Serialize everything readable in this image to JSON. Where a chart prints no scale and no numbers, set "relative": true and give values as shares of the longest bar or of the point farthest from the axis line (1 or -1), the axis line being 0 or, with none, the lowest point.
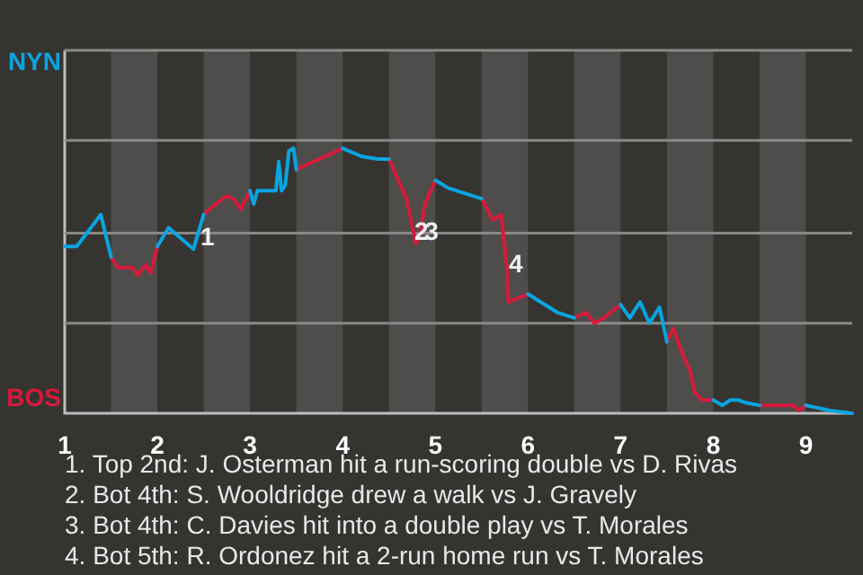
{
  "chart_data": {
    "type": "line",
    "relative": true,
    "xlim": [
      1,
      9.5
    ],
    "xticks": [
      1,
      2,
      3,
      4,
      5,
      6,
      7,
      8,
      9
    ],
    "legend": false,
    "marker": "none",
    "line_style": "solid",
    "series": [
      {
        "color": "#0aa4e0",
        "x": [
          1,
          1.13,
          1.39,
          1.5,
          1.75,
          2,
          2.12,
          2.39,
          2.5,
          2.75,
          3,
          3.04,
          3.08,
          3.28,
          3.31,
          3.34,
          3.38,
          3.42,
          3.47,
          3.5,
          3.75,
          4,
          4.2,
          4.38,
          4.5,
          4.75,
          5,
          5.14,
          5.5,
          5.75,
          6,
          6.32,
          6.5,
          6.75,
          7,
          7.1,
          7.21,
          7.31,
          7.42,
          7.5,
          7.75,
          8,
          8.1,
          8.18,
          8.27,
          8.35,
          8.5,
          8.75,
          9,
          9.26,
          9.5
        ],
        "values": [
          0.63,
          0.63,
          0.75,
          0.59,
          null,
          0.63,
          0.7,
          0.62,
          0.75,
          null,
          0.84,
          0.79,
          0.84,
          0.84,
          0.95,
          0.84,
          0.86,
          0.99,
          1,
          0.92,
          null,
          1,
          0.97,
          0.96,
          0.96,
          null,
          0.88,
          0.85,
          0.81,
          null,
          0.45,
          0.38,
          0.36,
          null,
          0.41,
          0.36,
          0.42,
          0.34,
          0.4,
          0.27,
          null,
          0.05,
          0.03,
          0.05,
          0.05,
          0.04,
          0.03,
          null,
          0.03,
          0.01,
          0
        ]
      },
      {
        "color": "#d61a3c",
        "x": [
          1.5,
          1.57,
          1.73,
          1.79,
          1.87,
          1.93,
          2,
          2.25,
          2.5,
          2.6,
          2.74,
          2.82,
          2.9,
          3,
          3.25,
          3.5,
          4,
          4.25,
          4.5,
          4.69,
          4.79,
          4.83,
          4.89,
          5,
          5.25,
          5.5,
          5.62,
          5.71,
          5.77,
          5.79,
          6,
          6.25,
          6.5,
          6.63,
          6.72,
          6.82,
          7,
          7.25,
          7.5,
          7.57,
          7.66,
          7.75,
          7.8,
          7.88,
          8,
          8.25,
          8.5,
          8.86,
          8.93,
          9
        ],
        "values": [
          0.59,
          0.55,
          0.55,
          0.52,
          0.56,
          0.53,
          0.63,
          null,
          0.75,
          0.78,
          0.82,
          0.81,
          0.77,
          0.84,
          null,
          0.92,
          1,
          null,
          0.96,
          0.81,
          0.64,
          0.67,
          0.79,
          0.88,
          null,
          0.81,
          0.73,
          0.75,
          0.56,
          0.42,
          0.45,
          null,
          0.36,
          0.38,
          0.34,
          0.36,
          0.41,
          null,
          0.27,
          0.32,
          0.23,
          0.16,
          0.08,
          0.05,
          0.05,
          null,
          0.03,
          0.03,
          0.01,
          0.03
        ]
      }
    ],
    "ref_lines": [
      {
        "axis": "y",
        "value": 0.34,
        "color": "#8a8886"
      },
      {
        "axis": "y",
        "value": 0.68,
        "color": "#8a8886"
      },
      {
        "axis": "y",
        "value": 1.03,
        "color": "#8a8886"
      },
      {
        "axis": "y",
        "value": 1.37,
        "color": "#8a8886"
      }
    ],
    "bands": [
      {
        "axis": "x",
        "from": 1.5,
        "to": 2,
        "color": "#4f4d4b"
      },
      {
        "axis": "x",
        "from": 2.5,
        "to": 3,
        "color": "#4f4d4b"
      },
      {
        "axis": "x",
        "from": 3.5,
        "to": 4,
        "color": "#4f4d4b"
      },
      {
        "axis": "x",
        "from": 4.5,
        "to": 5,
        "color": "#4f4d4b"
      },
      {
        "axis": "x",
        "from": 5.5,
        "to": 6,
        "color": "#4f4d4b"
      },
      {
        "axis": "x",
        "from": 6.5,
        "to": 7,
        "color": "#4f4d4b"
      },
      {
        "axis": "x",
        "from": 7.5,
        "to": 8,
        "color": "#4f4d4b"
      },
      {
        "axis": "x",
        "from": 8.5,
        "to": 9,
        "color": "#4f4d4b"
      }
    ],
    "annotations": [
      "NYN",
      "BOS",
      {
        "text": "1",
        "x": 2.54,
        "y": 0.66
      },
      {
        "text": "2",
        "x": 4.85,
        "y": 0.68
      },
      {
        "text": "3",
        "x": 4.96,
        "y": 0.68
      },
      {
        "text": "4",
        "x": 5.87,
        "y": 0.56
      },
      "1. Top 2nd: J. Osterman hit a run-scoring double vs D. Rivas",
      "2. Bot 4th: S. Wooldridge drew a walk vs J. Gravely",
      "3. Bot 4th: C. Davies hit into a double play vs T. Morales",
      "4. Bot 5th: R. Ordonez hit a 2-run home run vs T. Morales"
    ]
  }
}
